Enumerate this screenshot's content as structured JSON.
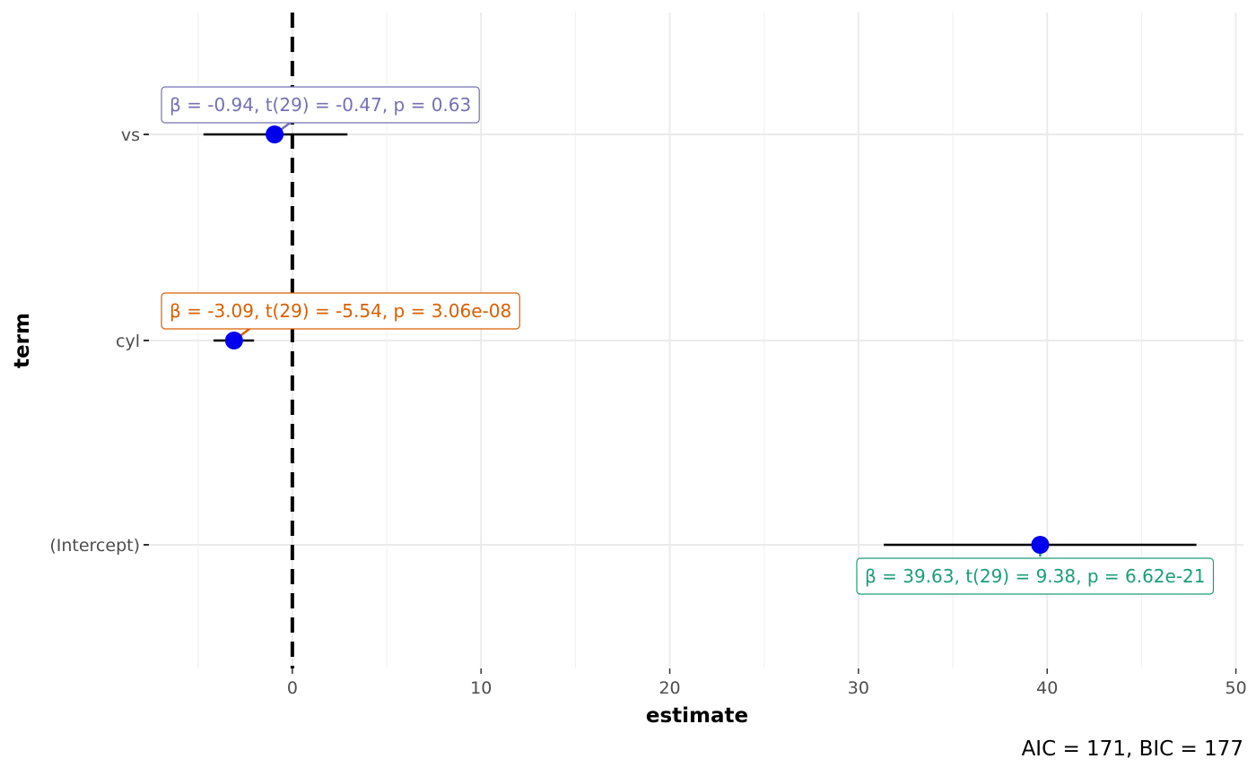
{
  "chart_data": {
    "type": "scatter",
    "xlabel": "estimate",
    "ylabel": "term",
    "xlim": [
      -7.6,
      50.4
    ],
    "grid": true,
    "x_ticks": [
      0,
      10,
      20,
      30,
      40,
      50
    ],
    "x_tick_labels": [
      "0",
      "10",
      "20",
      "30",
      "40",
      "50"
    ],
    "reference_line": {
      "x": 0,
      "style": "dashed"
    },
    "point_color": "#0000ee",
    "caption": "AIC = 171, BIC = 177",
    "terms": [
      {
        "term": "vs",
        "estimate": -0.94,
        "conf_low": -4.71,
        "conf_high": 2.92,
        "label": "β = -0.94, t(29) = -0.47, p = 0.63",
        "label_color": "#7570b3"
      },
      {
        "term": "cyl",
        "estimate": -3.09,
        "conf_low": -4.18,
        "conf_high": -2.03,
        "label": "β = -3.09, t(29) = -5.54, p = 3.06e-08",
        "label_color": "#d95f02"
      },
      {
        "term": "(Intercept)",
        "estimate": 39.63,
        "conf_low": 31.34,
        "conf_high": 47.91,
        "label": "β = 39.63, t(29) = 9.38, p = 6.62e-21",
        "label_color": "#1b9e77"
      }
    ]
  }
}
